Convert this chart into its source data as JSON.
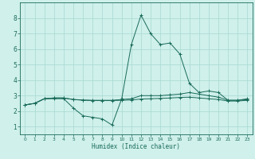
{
  "xlabel": "Humidex (Indice chaleur)",
  "xlim": [
    -0.5,
    23.5
  ],
  "ylim": [
    0.5,
    9
  ],
  "xticks": [
    0,
    1,
    2,
    3,
    4,
    5,
    6,
    7,
    8,
    9,
    10,
    11,
    12,
    13,
    14,
    15,
    16,
    17,
    18,
    19,
    20,
    21,
    22,
    23
  ],
  "yticks": [
    1,
    2,
    3,
    4,
    5,
    6,
    7,
    8
  ],
  "background_color": "#cff0eb",
  "grid_color": "#a8d8d0",
  "line_color": "#1a6b5a",
  "series": [
    {
      "x": [
        0,
        1,
        2,
        3,
        4,
        5,
        6,
        7,
        8,
        9,
        10,
        11,
        12,
        13,
        14,
        15,
        16,
        17,
        18,
        19,
        20,
        21,
        22,
        23
      ],
      "y": [
        2.4,
        2.5,
        2.8,
        2.8,
        2.8,
        2.2,
        1.7,
        1.6,
        1.5,
        1.1,
        2.8,
        6.3,
        8.2,
        7.0,
        6.3,
        6.4,
        5.7,
        3.8,
        3.2,
        3.3,
        3.2,
        2.7,
        2.7,
        2.8
      ]
    },
    {
      "x": [
        0,
        1,
        2,
        3,
        4,
        5,
        6,
        7,
        8,
        9,
        10,
        11,
        12,
        13,
        14,
        15,
        16,
        17,
        18,
        19,
        20,
        21,
        22,
        23
      ],
      "y": [
        2.4,
        2.5,
        2.8,
        2.85,
        2.85,
        2.75,
        2.72,
        2.7,
        2.7,
        2.7,
        2.75,
        2.8,
        3.0,
        3.0,
        3.0,
        3.05,
        3.1,
        3.2,
        3.1,
        3.0,
        2.9,
        2.7,
        2.7,
        2.75
      ]
    },
    {
      "x": [
        0,
        1,
        2,
        3,
        4,
        5,
        6,
        7,
        8,
        9,
        10,
        11,
        12,
        13,
        14,
        15,
        16,
        17,
        18,
        19,
        20,
        21,
        22,
        23
      ],
      "y": [
        2.4,
        2.5,
        2.8,
        2.85,
        2.85,
        2.75,
        2.7,
        2.68,
        2.68,
        2.68,
        2.7,
        2.72,
        2.78,
        2.8,
        2.82,
        2.85,
        2.88,
        2.9,
        2.85,
        2.8,
        2.75,
        2.65,
        2.65,
        2.7
      ]
    }
  ]
}
